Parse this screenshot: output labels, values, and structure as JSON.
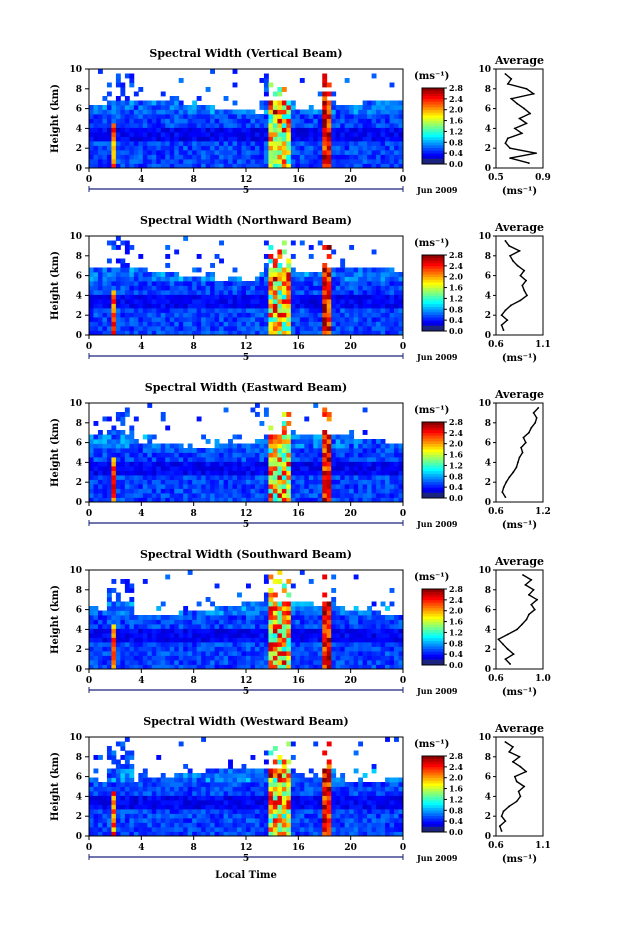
{
  "chart_data": [
    {
      "type": "heatmap",
      "title": "Spectral Width (Vertical Beam)",
      "xlabel": "",
      "ylabel": "Height (km)",
      "xlim": [
        0,
        24
      ],
      "ylim": [
        0,
        10
      ],
      "xticks": [
        "0",
        "4",
        "8",
        "12",
        "16",
        "20",
        "0"
      ],
      "yticks": [
        "0",
        "2",
        "4",
        "6",
        "8",
        "10"
      ],
      "date_marker": "5",
      "date_label": "Jun 2009",
      "colorbar": {
        "unit": "(ms⁻¹)",
        "range": [
          0,
          2.8
        ],
        "ticks": [
          "0.0",
          "0.4",
          "0.8",
          "1.2",
          "1.6",
          "2.0",
          "2.4",
          "2.8"
        ]
      },
      "profile": {
        "title": "Average",
        "xlabel": "(ms⁻¹)",
        "xticks": [
          "0.5",
          "0.9"
        ],
        "xlim": [
          0.5,
          0.9
        ],
        "height": [
          0.5,
          1,
          1.5,
          2,
          2.5,
          3,
          3.5,
          4,
          4.5,
          5,
          5.5,
          6,
          6.5,
          7,
          7.5,
          8,
          8.5,
          9,
          9.5
        ],
        "values": [
          0.78,
          0.62,
          0.84,
          0.62,
          0.58,
          0.6,
          0.72,
          0.66,
          0.76,
          0.7,
          0.79,
          0.74,
          0.68,
          0.63,
          0.82,
          0.76,
          0.6,
          0.63,
          0.58
        ]
      }
    },
    {
      "type": "heatmap",
      "title": "Spectral Width (Northward Beam)",
      "xlabel": "",
      "ylabel": "Height (km)",
      "xlim": [
        0,
        24
      ],
      "ylim": [
        0,
        10
      ],
      "xticks": [
        "0",
        "4",
        "8",
        "12",
        "16",
        "20",
        "0"
      ],
      "yticks": [
        "0",
        "2",
        "4",
        "6",
        "8",
        "10"
      ],
      "date_marker": "5",
      "date_label": "Jun 2009",
      "colorbar": {
        "unit": "(ms⁻¹)",
        "range": [
          0,
          2.8
        ],
        "ticks": [
          "0.0",
          "0.4",
          "0.8",
          "1.2",
          "1.6",
          "2.0",
          "2.4",
          "2.8"
        ]
      },
      "profile": {
        "title": "Average",
        "xlabel": "(ms⁻¹)",
        "xticks": [
          "0.6",
          "1.1"
        ],
        "xlim": [
          0.6,
          1.1
        ],
        "height": [
          0.5,
          1,
          1.5,
          2,
          2.5,
          3,
          3.5,
          4,
          4.5,
          5,
          5.5,
          6,
          6.5,
          7,
          7.5,
          8,
          8.5,
          9,
          9.5
        ],
        "values": [
          0.68,
          0.66,
          0.72,
          0.66,
          0.7,
          0.76,
          0.86,
          0.93,
          0.9,
          0.88,
          0.92,
          0.86,
          0.9,
          0.83,
          0.78,
          0.75,
          0.85,
          0.74,
          0.7
        ]
      }
    },
    {
      "type": "heatmap",
      "title": "Spectral Width (Eastward Beam)",
      "xlabel": "",
      "ylabel": "Height (km)",
      "xlim": [
        0,
        24
      ],
      "ylim": [
        0,
        10
      ],
      "xticks": [
        "0",
        "4",
        "8",
        "12",
        "16",
        "20",
        "0"
      ],
      "yticks": [
        "0",
        "2",
        "4",
        "6",
        "8",
        "10"
      ],
      "date_marker": "5",
      "date_label": "Jun 2009",
      "colorbar": {
        "unit": "(ms⁻¹)",
        "range": [
          0,
          2.8
        ],
        "ticks": [
          "0.0",
          "0.4",
          "0.8",
          "1.2",
          "1.6",
          "2.0",
          "2.4",
          "2.8"
        ]
      },
      "profile": {
        "title": "Average",
        "xlabel": "(ms⁻¹)",
        "xticks": [
          "0.6",
          "1.2"
        ],
        "xlim": [
          0.6,
          1.2
        ],
        "height": [
          0.5,
          1,
          1.5,
          2,
          2.5,
          3,
          3.5,
          4,
          4.5,
          5,
          5.5,
          6,
          6.5,
          7,
          7.5,
          8,
          8.5,
          9,
          9.5
        ],
        "values": [
          0.72,
          0.68,
          0.7,
          0.73,
          0.77,
          0.82,
          0.86,
          0.88,
          0.9,
          0.94,
          0.92,
          0.98,
          0.95,
          1.02,
          1.05,
          1.1,
          1.12,
          1.08,
          1.14
        ]
      }
    },
    {
      "type": "heatmap",
      "title": "Spectral Width (Southward Beam)",
      "xlabel": "",
      "ylabel": "Height (km)",
      "xlim": [
        0,
        24
      ],
      "ylim": [
        0,
        10
      ],
      "xticks": [
        "0",
        "4",
        "8",
        "12",
        "16",
        "20",
        "0"
      ],
      "yticks": [
        "0",
        "2",
        "4",
        "6",
        "8",
        "10"
      ],
      "date_marker": "5",
      "date_label": "Jun 2009",
      "colorbar": {
        "unit": "(ms⁻¹)",
        "range": [
          0,
          2.8
        ],
        "ticks": [
          "0.0",
          "0.4",
          "0.8",
          "1.2",
          "1.6",
          "2.0",
          "2.4",
          "2.8"
        ]
      },
      "profile": {
        "title": "Average",
        "xlabel": "(ms⁻¹)",
        "xticks": [
          "0.6",
          "1.0"
        ],
        "xlim": [
          0.6,
          1.0
        ],
        "height": [
          0.5,
          1,
          1.5,
          2,
          2.5,
          3,
          3.5,
          4,
          4.5,
          5,
          5.5,
          6,
          6.5,
          7,
          7.5,
          8,
          8.5,
          9,
          9.5
        ],
        "values": [
          0.72,
          0.68,
          0.75,
          0.7,
          0.66,
          0.62,
          0.7,
          0.78,
          0.82,
          0.86,
          0.88,
          0.93,
          0.9,
          0.95,
          0.88,
          0.92,
          0.85,
          0.9,
          0.83
        ]
      }
    },
    {
      "type": "heatmap",
      "title": "Spectral Width (Westward Beam)",
      "xlabel": "Local Time",
      "ylabel": "Height (km)",
      "xlim": [
        0,
        24
      ],
      "ylim": [
        0,
        10
      ],
      "xticks": [
        "0",
        "4",
        "8",
        "12",
        "16",
        "20",
        "0"
      ],
      "yticks": [
        "0",
        "2",
        "4",
        "6",
        "8",
        "10"
      ],
      "date_marker": "5",
      "date_label": "Jun 2009",
      "colorbar": {
        "unit": "(ms⁻¹)",
        "range": [
          0,
          2.8
        ],
        "ticks": [
          "0.0",
          "0.4",
          "0.8",
          "1.2",
          "1.6",
          "2.0",
          "2.4",
          "2.8"
        ]
      },
      "profile": {
        "title": "Average",
        "xlabel": "(ms⁻¹)",
        "xticks": [
          "0.6",
          "1.1"
        ],
        "xlim": [
          0.6,
          1.1
        ],
        "height": [
          0.5,
          1,
          1.5,
          2,
          2.5,
          3,
          3.5,
          4,
          4.5,
          5,
          5.5,
          6,
          6.5,
          7,
          7.5,
          8,
          8.5,
          9,
          9.5
        ],
        "values": [
          0.66,
          0.64,
          0.7,
          0.66,
          0.68,
          0.74,
          0.82,
          0.86,
          0.84,
          0.9,
          0.82,
          0.8,
          0.92,
          0.86,
          0.78,
          0.85,
          0.74,
          0.78,
          0.7
        ]
      }
    }
  ]
}
